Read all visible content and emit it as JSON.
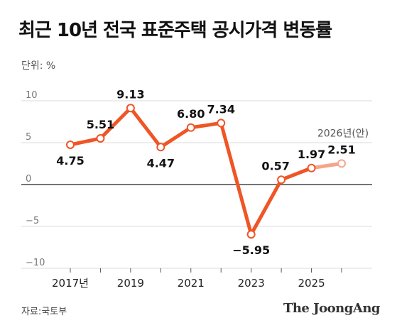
{
  "title": "최근 10년 전국 표준주택 공시가격 변동률",
  "unit_label": "단위: %",
  "source": "자료:국토부",
  "brand": "The JoongAng",
  "colors": {
    "line": "#ef5525",
    "line_light": "#f5a58a",
    "marker_fill": "#ffffff",
    "zero_line": "#222222",
    "grid": "#cfcfcf"
  },
  "chart_data": {
    "type": "line",
    "title": "최근 10년 전국 표준주택 공시가격 변동률",
    "ylabel": "단위: %",
    "ylim": [
      -10,
      10
    ],
    "yticks": [
      10,
      5,
      0,
      -5,
      -10
    ],
    "ytick_labels": [
      "10",
      "5",
      "0",
      "−5",
      "−10"
    ],
    "x": [
      2017,
      2018,
      2019,
      2020,
      2021,
      2022,
      2023,
      2024,
      2025,
      2026
    ],
    "x_tick_labels": [
      {
        "x": 2017,
        "label": "2017년"
      },
      {
        "x": 2019,
        "label": "2019"
      },
      {
        "x": 2021,
        "label": "2021"
      },
      {
        "x": 2023,
        "label": "2023"
      },
      {
        "x": 2025,
        "label": "2025"
      }
    ],
    "values": [
      4.75,
      5.51,
      9.13,
      4.47,
      6.8,
      7.34,
      -5.95,
      0.57,
      1.97,
      2.51
    ],
    "value_labels": [
      "4.75",
      "5.51",
      "9.13",
      "4.47",
      "6.80",
      "7.34",
      "−5.95",
      "0.57",
      "1.97",
      "2.51"
    ],
    "projected_from": 2025,
    "annotation": {
      "x": 2026,
      "text": "2026년(안)"
    },
    "grid": true
  }
}
